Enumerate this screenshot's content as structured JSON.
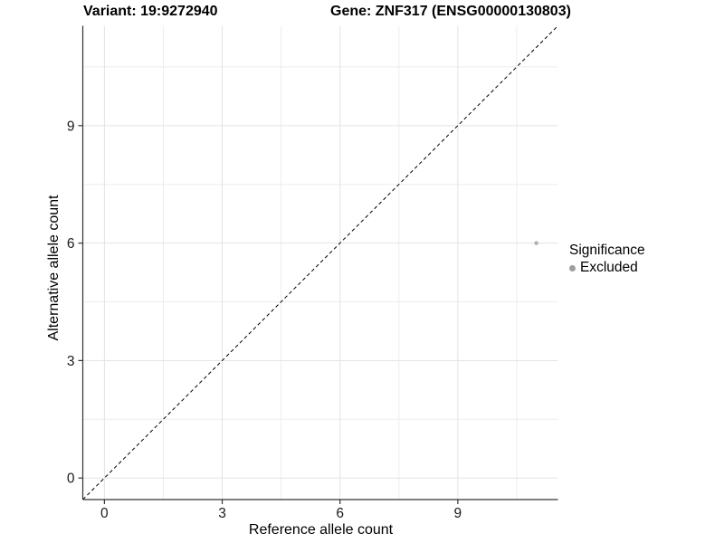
{
  "titles": {
    "variant": "Variant: 19:9272940",
    "gene": "Gene: ZNF317 (ENSG00000130803)"
  },
  "chart_data": {
    "type": "scatter",
    "title_left": "Variant: 19:9272940",
    "title_right": "Gene: ZNF317 (ENSG00000130803)",
    "xlabel": "Reference allele count",
    "ylabel": "Alternative allele count",
    "xlim": [
      -0.55,
      11.55
    ],
    "ylim": [
      -0.55,
      11.55
    ],
    "xticks": [
      0,
      3,
      6,
      9
    ],
    "yticks": [
      0,
      3,
      6,
      9
    ],
    "xticks_minor": [
      1.5,
      4.5,
      7.5,
      10.5
    ],
    "yticks_minor": [
      1.5,
      4.5,
      7.5,
      10.5
    ],
    "grid": true,
    "legend_position": "right",
    "reference_line": {
      "kind": "identity",
      "style": "dashed",
      "color": "#000000"
    },
    "series": [
      {
        "name": "Excluded",
        "color": "#b3b3b3",
        "points": [
          {
            "x": 11,
            "y": 6
          }
        ]
      }
    ],
    "legend": {
      "title": "Significance",
      "items": [
        {
          "label": "Excluded",
          "color": "#9e9e9e"
        }
      ]
    },
    "colors": {
      "grid_major": "#e3e3e3",
      "grid_minor": "#ededed",
      "axis_line": "#333333",
      "tick_text": "#1a1a1a"
    }
  }
}
